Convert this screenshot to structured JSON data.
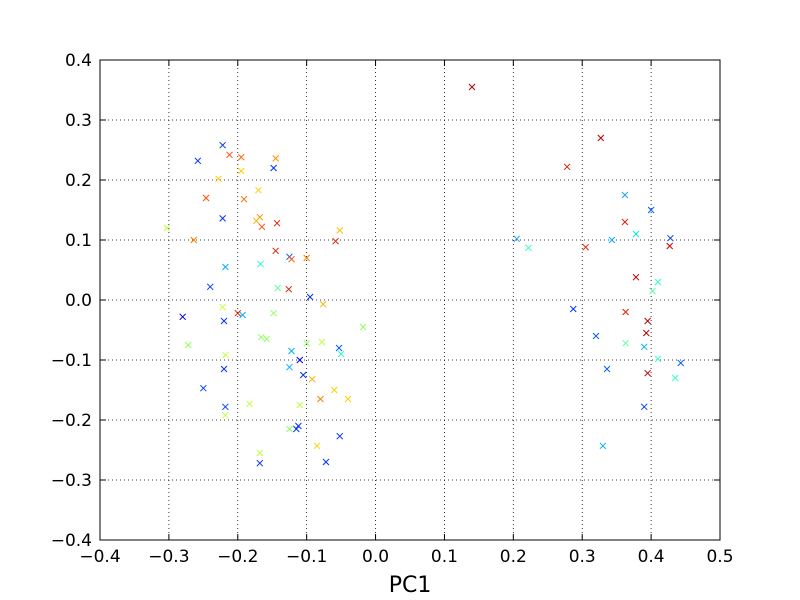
{
  "chart_data": {
    "type": "scatter",
    "title": "",
    "xlabel": "PC1",
    "ylabel": "",
    "xlim": [
      -0.4,
      0.5
    ],
    "ylim": [
      -0.4,
      0.4
    ],
    "xticks": [
      -0.4,
      -0.3,
      -0.2,
      -0.1,
      0.0,
      0.1,
      0.2,
      0.3,
      0.4,
      0.5
    ],
    "xtick_labels": [
      "−0.4",
      "−0.3",
      "−0.2",
      "−0.1",
      "0.0",
      "0.1",
      "0.2",
      "0.3",
      "0.4",
      "0.5"
    ],
    "yticks": [
      -0.4,
      -0.3,
      -0.2,
      -0.1,
      0.0,
      0.1,
      0.2,
      0.3,
      0.4
    ],
    "ytick_labels": [
      "−0.4",
      "−0.3",
      "−0.2",
      "−0.1",
      "0.0",
      "0.1",
      "0.2",
      "0.3",
      "0.4"
    ],
    "grid": true,
    "grid_style": "dotted",
    "marker": "x",
    "colormap": "jet",
    "points": [
      {
        "x": 0.14,
        "y": 0.355,
        "color": "#b00000"
      },
      {
        "x": 0.327,
        "y": 0.27,
        "color": "#c00000"
      },
      {
        "x": 0.278,
        "y": 0.222,
        "color": "#dd2000"
      },
      {
        "x": 0.362,
        "y": 0.13,
        "color": "#e02000"
      },
      {
        "x": 0.305,
        "y": 0.088,
        "color": "#e02000"
      },
      {
        "x": 0.395,
        "y": -0.035,
        "color": "#c00000"
      },
      {
        "x": 0.393,
        "y": -0.055,
        "color": "#c00000"
      },
      {
        "x": 0.378,
        "y": 0.038,
        "color": "#c00000"
      },
      {
        "x": 0.427,
        "y": 0.09,
        "color": "#d00000"
      },
      {
        "x": 0.363,
        "y": -0.02,
        "color": "#e02000"
      },
      {
        "x": 0.395,
        "y": -0.122,
        "color": "#c00000"
      },
      {
        "x": 0.362,
        "y": 0.175,
        "color": "#20a0ff"
      },
      {
        "x": 0.4,
        "y": 0.15,
        "color": "#0060ff"
      },
      {
        "x": 0.428,
        "y": 0.103,
        "color": "#0040ff"
      },
      {
        "x": 0.343,
        "y": 0.1,
        "color": "#00b0ff"
      },
      {
        "x": 0.378,
        "y": 0.11,
        "color": "#00e8e0"
      },
      {
        "x": 0.41,
        "y": 0.03,
        "color": "#30ffd0"
      },
      {
        "x": 0.402,
        "y": 0.015,
        "color": "#60ffa0"
      },
      {
        "x": 0.39,
        "y": -0.078,
        "color": "#00b0ff"
      },
      {
        "x": 0.363,
        "y": -0.072,
        "color": "#60ffa0"
      },
      {
        "x": 0.32,
        "y": -0.06,
        "color": "#0060ff"
      },
      {
        "x": 0.287,
        "y": -0.015,
        "color": "#0030ff"
      },
      {
        "x": 0.336,
        "y": -0.115,
        "color": "#0060ff"
      },
      {
        "x": 0.41,
        "y": -0.098,
        "color": "#30ffd0"
      },
      {
        "x": 0.443,
        "y": -0.105,
        "color": "#0060ff"
      },
      {
        "x": 0.435,
        "y": -0.13,
        "color": "#30ffd0"
      },
      {
        "x": 0.39,
        "y": -0.178,
        "color": "#0040ff"
      },
      {
        "x": 0.33,
        "y": -0.243,
        "color": "#00b0ff"
      },
      {
        "x": 0.205,
        "y": 0.102,
        "color": "#20a0ff"
      },
      {
        "x": 0.222,
        "y": 0.087,
        "color": "#30ffd0"
      },
      {
        "x": -0.222,
        "y": 0.258,
        "color": "#0030ff"
      },
      {
        "x": -0.258,
        "y": 0.232,
        "color": "#0030ff"
      },
      {
        "x": -0.212,
        "y": 0.242,
        "color": "#ff5000"
      },
      {
        "x": -0.195,
        "y": 0.238,
        "color": "#ff6000"
      },
      {
        "x": -0.145,
        "y": 0.236,
        "color": "#ff9000"
      },
      {
        "x": -0.148,
        "y": 0.22,
        "color": "#0030ff"
      },
      {
        "x": -0.195,
        "y": 0.215,
        "color": "#ffd000"
      },
      {
        "x": -0.228,
        "y": 0.202,
        "color": "#ffd000"
      },
      {
        "x": -0.17,
        "y": 0.183,
        "color": "#ffd000"
      },
      {
        "x": -0.246,
        "y": 0.17,
        "color": "#ff5000"
      },
      {
        "x": -0.191,
        "y": 0.168,
        "color": "#ff7000"
      },
      {
        "x": -0.222,
        "y": 0.136,
        "color": "#0030ff"
      },
      {
        "x": -0.168,
        "y": 0.138,
        "color": "#ff9000"
      },
      {
        "x": -0.173,
        "y": 0.132,
        "color": "#ffb000"
      },
      {
        "x": -0.165,
        "y": 0.122,
        "color": "#ff5000"
      },
      {
        "x": -0.143,
        "y": 0.128,
        "color": "#e02000"
      },
      {
        "x": -0.303,
        "y": 0.12,
        "color": "#c0ff40"
      },
      {
        "x": -0.264,
        "y": 0.1,
        "color": "#ff8000"
      },
      {
        "x": -0.052,
        "y": 0.116,
        "color": "#ffc000"
      },
      {
        "x": -0.058,
        "y": 0.098,
        "color": "#e02000"
      },
      {
        "x": -0.145,
        "y": 0.082,
        "color": "#e02000"
      },
      {
        "x": -0.125,
        "y": 0.072,
        "color": "#0060ff"
      },
      {
        "x": -0.122,
        "y": 0.068,
        "color": "#ff5000"
      },
      {
        "x": -0.1,
        "y": 0.07,
        "color": "#ff8000"
      },
      {
        "x": -0.167,
        "y": 0.06,
        "color": "#30ffd0"
      },
      {
        "x": -0.218,
        "y": 0.055,
        "color": "#00b0ff"
      },
      {
        "x": -0.24,
        "y": 0.022,
        "color": "#0040ff"
      },
      {
        "x": -0.142,
        "y": 0.02,
        "color": "#60ffa0"
      },
      {
        "x": -0.126,
        "y": 0.018,
        "color": "#e02000"
      },
      {
        "x": -0.095,
        "y": 0.005,
        "color": "#0030ff"
      },
      {
        "x": -0.076,
        "y": -0.007,
        "color": "#ffb000"
      },
      {
        "x": -0.222,
        "y": -0.012,
        "color": "#c0ff40"
      },
      {
        "x": -0.28,
        "y": -0.028,
        "color": "#0000d0"
      },
      {
        "x": -0.2,
        "y": -0.022,
        "color": "#e02000"
      },
      {
        "x": -0.193,
        "y": -0.025,
        "color": "#00b0ff"
      },
      {
        "x": -0.22,
        "y": -0.035,
        "color": "#0030ff"
      },
      {
        "x": -0.148,
        "y": -0.022,
        "color": "#90ff60"
      },
      {
        "x": -0.018,
        "y": -0.045,
        "color": "#90ff60"
      },
      {
        "x": -0.272,
        "y": -0.075,
        "color": "#90ff60"
      },
      {
        "x": -0.166,
        "y": -0.062,
        "color": "#90ff60"
      },
      {
        "x": -0.158,
        "y": -0.065,
        "color": "#90ff60"
      },
      {
        "x": -0.1,
        "y": -0.072,
        "color": "#90ff60"
      },
      {
        "x": -0.078,
        "y": -0.07,
        "color": "#c0ff40"
      },
      {
        "x": -0.053,
        "y": -0.08,
        "color": "#0060ff"
      },
      {
        "x": -0.05,
        "y": -0.09,
        "color": "#30ffd0"
      },
      {
        "x": -0.122,
        "y": -0.085,
        "color": "#00b0ff"
      },
      {
        "x": -0.11,
        "y": -0.1,
        "color": "#0000d0"
      },
      {
        "x": -0.218,
        "y": -0.092,
        "color": "#c0ff40"
      },
      {
        "x": -0.125,
        "y": -0.112,
        "color": "#00b0ff"
      },
      {
        "x": -0.22,
        "y": -0.115,
        "color": "#0030ff"
      },
      {
        "x": -0.105,
        "y": -0.125,
        "color": "#0030ff"
      },
      {
        "x": -0.092,
        "y": -0.132,
        "color": "#ffb000"
      },
      {
        "x": -0.25,
        "y": -0.147,
        "color": "#0040ff"
      },
      {
        "x": -0.06,
        "y": -0.15,
        "color": "#ffd000"
      },
      {
        "x": -0.08,
        "y": -0.165,
        "color": "#ff8000"
      },
      {
        "x": -0.04,
        "y": -0.165,
        "color": "#ffd000"
      },
      {
        "x": -0.183,
        "y": -0.173,
        "color": "#c0ff40"
      },
      {
        "x": -0.11,
        "y": -0.175,
        "color": "#c0ff40"
      },
      {
        "x": -0.218,
        "y": -0.178,
        "color": "#0040ff"
      },
      {
        "x": -0.218,
        "y": -0.192,
        "color": "#c0ff40"
      },
      {
        "x": -0.112,
        "y": -0.21,
        "color": "#0030ff"
      },
      {
        "x": -0.115,
        "y": -0.215,
        "color": "#0030ff"
      },
      {
        "x": -0.125,
        "y": -0.215,
        "color": "#90ff60"
      },
      {
        "x": -0.052,
        "y": -0.227,
        "color": "#0030ff"
      },
      {
        "x": -0.085,
        "y": -0.243,
        "color": "#ffd000"
      },
      {
        "x": -0.168,
        "y": -0.255,
        "color": "#c0ff40"
      },
      {
        "x": -0.168,
        "y": -0.272,
        "color": "#0030ff"
      },
      {
        "x": -0.072,
        "y": -0.27,
        "color": "#0030ff"
      }
    ]
  }
}
